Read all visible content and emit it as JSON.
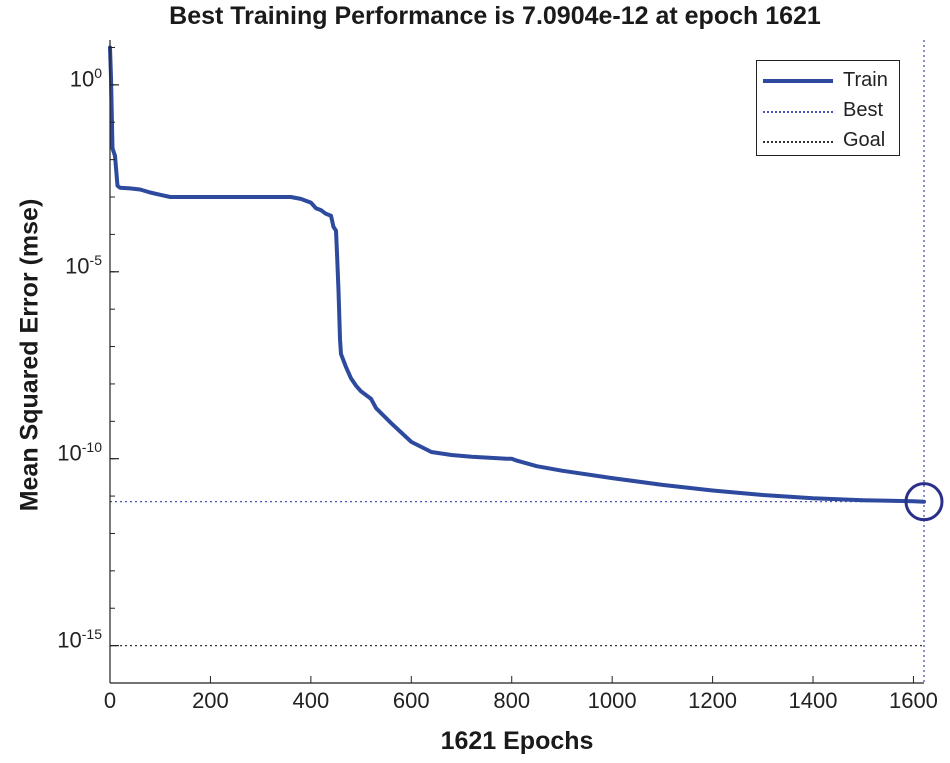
{
  "chart_data": {
    "type": "line",
    "title": "Best Training Performance is 7.0904e-12 at epoch 1621",
    "xlabel": "1621 Epochs",
    "ylabel": "Mean Squared Error  (mse)",
    "yscale": "log",
    "xlim": [
      0,
      1621
    ],
    "ylim_log10": [
      -16,
      1.2
    ],
    "xticks": [
      0,
      200,
      400,
      600,
      800,
      1000,
      1200,
      1400,
      1600
    ],
    "yticks": [
      {
        "exp": 0,
        "base": "10",
        "sup": "0"
      },
      {
        "exp": -5,
        "base": "10",
        "sup": "-5"
      },
      {
        "exp": -10,
        "base": "10",
        "sup": "-10"
      },
      {
        "exp": -15,
        "base": "10",
        "sup": "-15"
      }
    ],
    "series": [
      {
        "name": "Train",
        "color": "#2e4a9e",
        "x": [
          0,
          2,
          5,
          10,
          15,
          20,
          40,
          60,
          80,
          100,
          120,
          200,
          300,
          360,
          380,
          400,
          410,
          420,
          430,
          440,
          445,
          450,
          452,
          455,
          458,
          460,
          470,
          480,
          490,
          500,
          510,
          520,
          530,
          560,
          600,
          640,
          680,
          720,
          760,
          790,
          800,
          810,
          850,
          900,
          1000,
          1100,
          1200,
          1300,
          1400,
          1500,
          1600,
          1621
        ],
        "log10_y": [
          1.0,
          0.2,
          -1.7,
          -1.9,
          -2.7,
          -2.75,
          -2.77,
          -2.8,
          -2.88,
          -2.94,
          -3.0,
          -3.0,
          -3.0,
          -3.0,
          -3.05,
          -3.15,
          -3.3,
          -3.35,
          -3.45,
          -3.5,
          -3.8,
          -3.9,
          -4.5,
          -5.5,
          -6.8,
          -7.2,
          -7.55,
          -7.85,
          -8.05,
          -8.2,
          -8.3,
          -8.4,
          -8.65,
          -9.05,
          -9.55,
          -9.82,
          -9.9,
          -9.95,
          -9.98,
          -10.0,
          -10.0,
          -10.05,
          -10.2,
          -10.32,
          -10.52,
          -10.7,
          -10.85,
          -10.97,
          -11.06,
          -11.11,
          -11.14,
          -11.149
        ]
      }
    ],
    "best": {
      "epoch": 1621,
      "log10_y": -11.149,
      "value": "7.0904e-12"
    },
    "goal": {
      "log10_y": -15
    },
    "legend": {
      "position": "top-right",
      "entries": [
        {
          "label": "Train",
          "style": "solid",
          "color": "#2e4a9e"
        },
        {
          "label": "Best",
          "style": "dotted",
          "color": "#4b55b5"
        },
        {
          "label": "Goal",
          "style": "dotted",
          "color": "#333333"
        }
      ]
    }
  }
}
